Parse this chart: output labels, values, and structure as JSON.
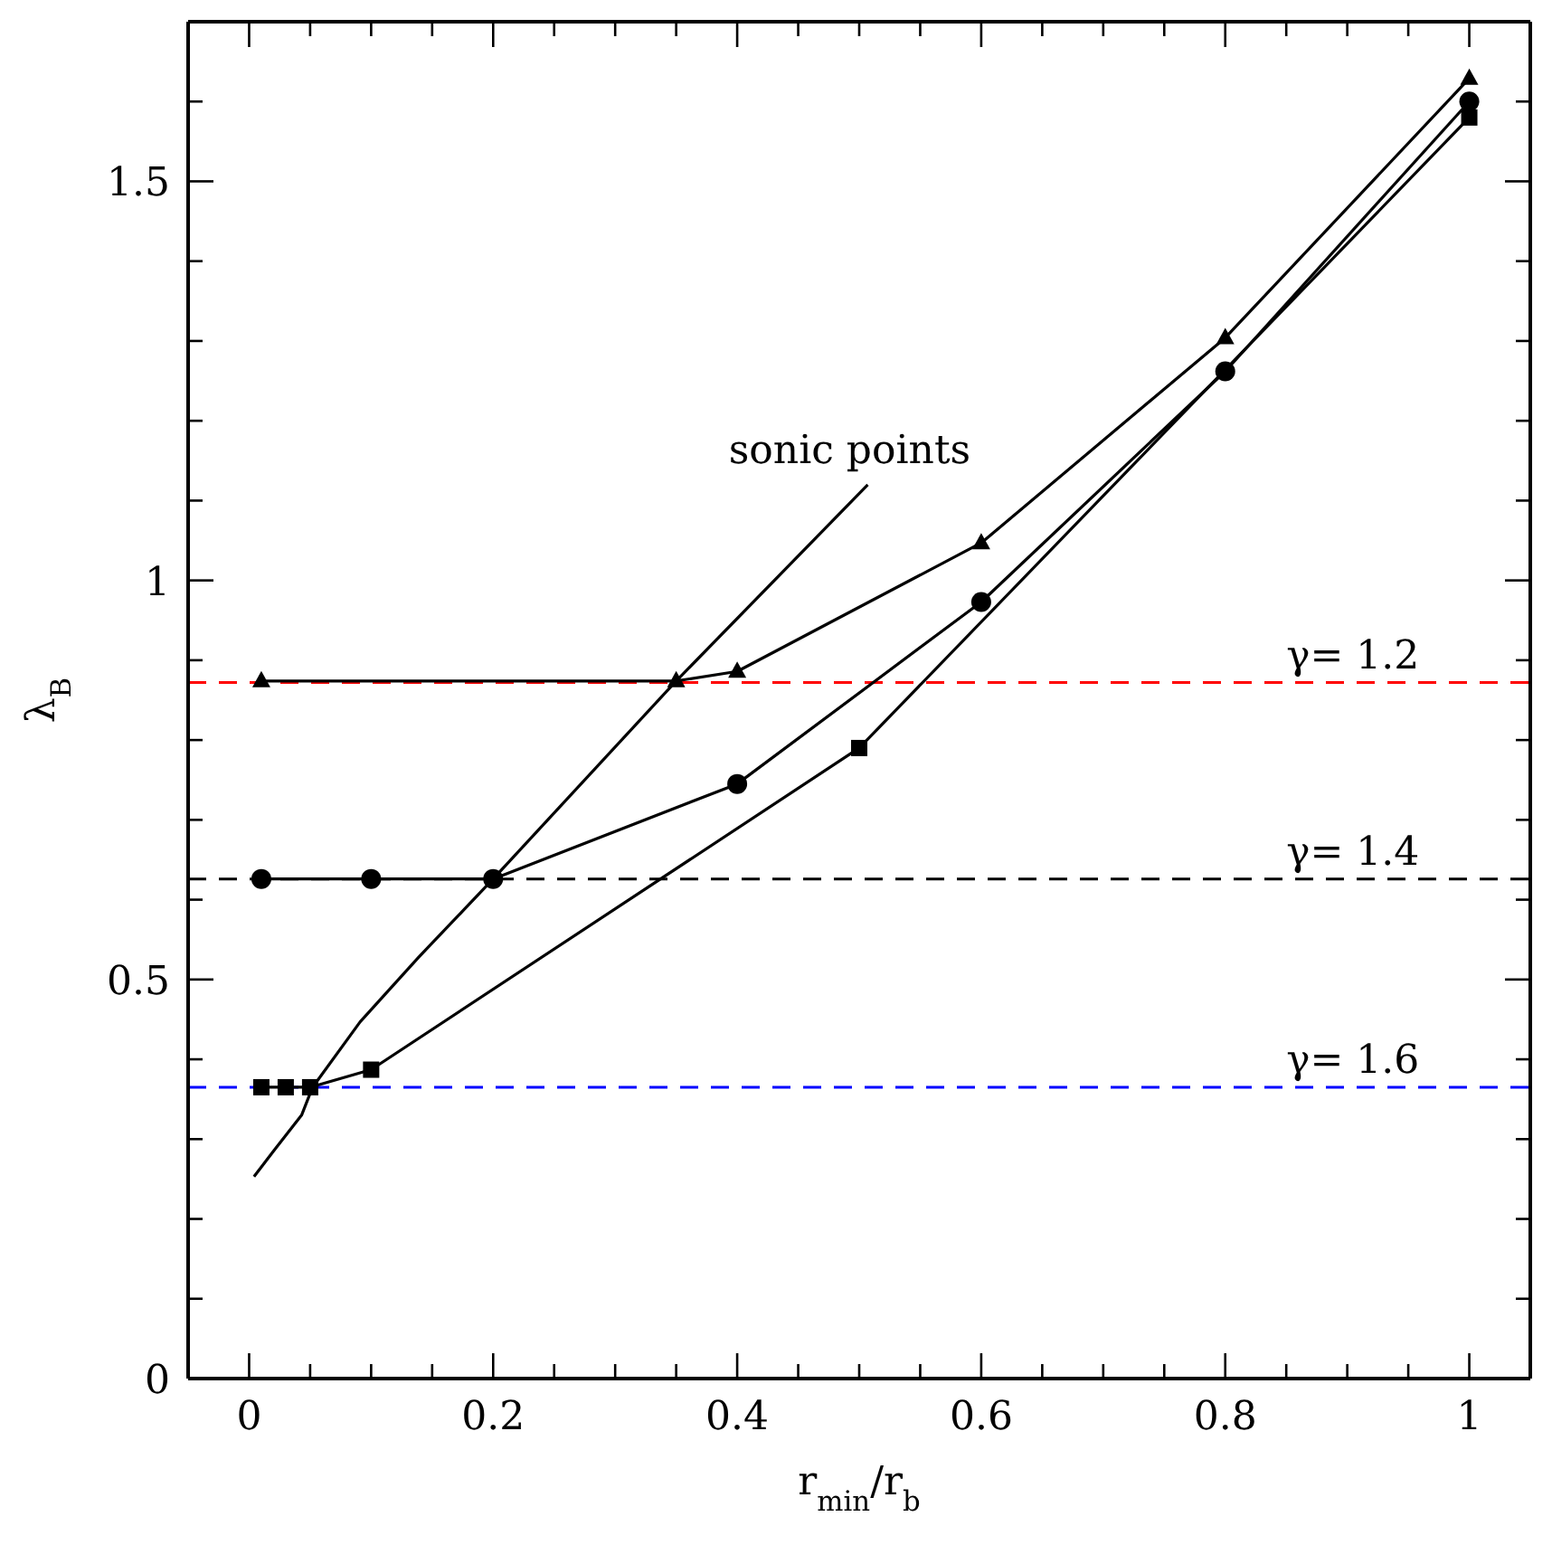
{
  "chart_data": {
    "type": "line",
    "xlabel": "r$_{min}$/r$_{b}$",
    "ylabel": "λ$_{B}$",
    "xlim": [
      -0.05,
      1.05
    ],
    "ylim": [
      0,
      1.7
    ],
    "xticks": [
      0,
      {
        "value": 0.05,
        "label": null
      },
      {
        "value": 0.1,
        "label": null
      },
      {
        "value": 0.15,
        "label": null
      },
      0.2,
      {
        "value": 0.25,
        "label": null
      },
      {
        "value": 0.3,
        "label": null
      },
      {
        "value": 0.35,
        "label": null
      },
      0.4,
      {
        "value": 0.45,
        "label": null
      },
      {
        "value": 0.5,
        "label": null
      },
      {
        "value": 0.55,
        "label": null
      },
      0.6,
      {
        "value": 0.65,
        "label": null
      },
      {
        "value": 0.7,
        "label": null
      },
      {
        "value": 0.75,
        "label": null
      },
      0.8,
      {
        "value": 0.85,
        "label": null
      },
      {
        "value": 0.9,
        "label": null
      },
      {
        "value": 0.95,
        "label": null
      },
      1
    ],
    "yticks": [
      0,
      {
        "value": 0.1,
        "label": null
      },
      {
        "value": 0.2,
        "label": null
      },
      {
        "value": 0.3,
        "label": null
      },
      {
        "value": 0.4,
        "label": null
      },
      0.5,
      {
        "value": 0.6,
        "label": null
      },
      {
        "value": 0.7,
        "label": null
      },
      {
        "value": 0.8,
        "label": null
      },
      {
        "value": 0.9,
        "label": null
      },
      1,
      {
        "value": 1.1,
        "label": null
      },
      {
        "value": 1.2,
        "label": null
      },
      {
        "value": 1.3,
        "label": null
      },
      {
        "value": 1.4,
        "label": null
      },
      1.5,
      {
        "value": 1.6,
        "label": null
      }
    ],
    "line_style": "solid",
    "series": [
      {
        "color": "#000000",
        "marker": "triangle",
        "x": [
          0.01,
          0.35,
          0.4,
          0.6,
          0.8,
          1
        ],
        "values": [
          0.874,
          0.874,
          0.886,
          1.047,
          1.304,
          1.629
        ]
      },
      {
        "color": "#000000",
        "marker": "circle",
        "x": [
          0.01,
          0.1,
          0.2,
          0.4,
          0.6,
          0.8,
          1
        ],
        "values": [
          0.626,
          0.626,
          0.626,
          0.745,
          0.973,
          1.262,
          1.6
        ]
      },
      {
        "color": "#000000",
        "marker": "square",
        "x": [
          0.01,
          0.03,
          0.05,
          0.1,
          0.5,
          1
        ],
        "values": [
          0.365,
          0.365,
          0.365,
          0.387,
          0.79,
          1.58
        ]
      },
      {
        "color": "#000000",
        "marker": "none",
        "x": [
          0.004,
          0.02,
          0.043,
          0.052,
          0.091,
          0.139,
          0.2,
          0.35,
          0.507
        ],
        "values": [
          0.253,
          0.285,
          0.33,
          0.365,
          0.447,
          0.528,
          0.626,
          0.874,
          1.12
        ]
      }
    ],
    "ref_lines": [
      {
        "axis": "y",
        "value": 0.872,
        "color": "#ff0000",
        "line_style": "dashed"
      },
      {
        "axis": "y",
        "value": 0.626,
        "color": "#000000",
        "line_style": "dashed"
      },
      {
        "axis": "y",
        "value": 0.365,
        "color": "#0000ff",
        "line_style": "dashed"
      }
    ],
    "annotations": [
      "sonic points",
      "γ= 1.2",
      "γ= 1.4",
      "γ= 1.6"
    ]
  }
}
